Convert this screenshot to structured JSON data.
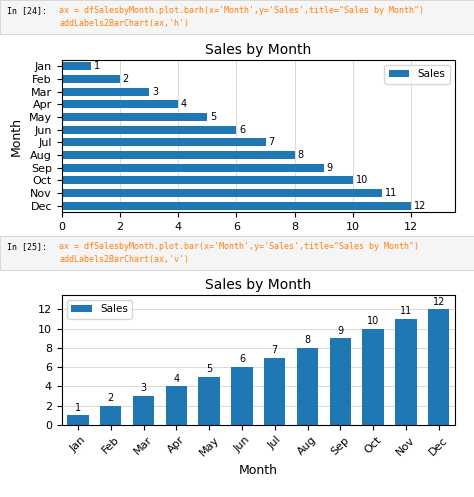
{
  "chart_data": [
    {
      "type": "bar",
      "orientation": "horizontal",
      "title": "Sales by Month",
      "ylabel": "Month",
      "categories": [
        "Dec",
        "Nov",
        "Oct",
        "Sep",
        "Aug",
        "Jul",
        "Jun",
        "May",
        "Apr",
        "Mar",
        "Feb",
        "Jan"
      ],
      "series": [
        {
          "name": "Sales",
          "color": "#1f77b4",
          "values": [
            12,
            11,
            10,
            9,
            8,
            7,
            6,
            5,
            4,
            3,
            2,
            1
          ]
        }
      ],
      "xlim": [
        0,
        13.5
      ],
      "xticks": [
        0,
        2,
        4,
        6,
        8,
        10,
        12
      ],
      "grid": true,
      "legend": "upper right",
      "data_labels": true,
      "annotations": [
        "In [24]:",
        "ax = dfSalesbyMonth.plot.barh(x='Month',y='Sales',title=\"Sales by Month\")",
        "addLabels2BarChart(ax,'h')"
      ]
    },
    {
      "type": "bar",
      "title": "Sales by Month",
      "xlabel": "Month",
      "categories": [
        "Jan",
        "Feb",
        "Mar",
        "Apr",
        "May",
        "Jun",
        "Jul",
        "Aug",
        "Sep",
        "Oct",
        "Nov",
        "Dec"
      ],
      "series": [
        {
          "name": "Sales",
          "color": "#1f77b4",
          "values": [
            1,
            2,
            3,
            4,
            5,
            6,
            7,
            8,
            9,
            10,
            11,
            12
          ]
        }
      ],
      "ylim": [
        0,
        13.5
      ],
      "yticks": [
        0,
        2,
        4,
        6,
        8,
        10,
        12
      ],
      "grid": true,
      "legend": "upper left",
      "data_labels": true,
      "annotations": [
        "In [25]:",
        "ax = dfSalesbyMonth.plot.bar(x='Month',y='Sales',title=\"Sales by Month\")",
        "addLabels2BarChart(ax,'v')"
      ]
    }
  ]
}
